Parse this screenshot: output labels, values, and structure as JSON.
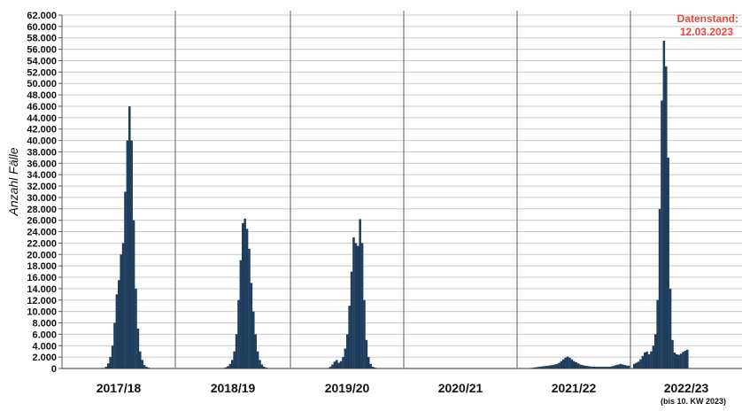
{
  "chart_data": {
    "type": "bar",
    "xlabel": "",
    "ylabel": "Anzahl Fälle",
    "ylim": [
      0,
      62000
    ],
    "y_tick_step": 2000,
    "y_tick_labels": [
      "0",
      "2.000",
      "4.000",
      "6.000",
      "8.000",
      "10.000",
      "12.000",
      "14.000",
      "16.000",
      "18.000",
      "20.000",
      "22.000",
      "24.000",
      "26.000",
      "28.000",
      "30.000",
      "32.000",
      "34.000",
      "36.000",
      "38.000",
      "40.000",
      "42.000",
      "44.000",
      "46.000",
      "48.000",
      "50.000",
      "52.000",
      "54.000",
      "56.000",
      "58.000",
      "60.000",
      "62.000"
    ],
    "grid": true,
    "annotation": {
      "line1": "Datenstand:",
      "line2": "12.03.2023",
      "color": "#e8463c",
      "placement": "top-right"
    },
    "bar_color": "#1f3d5c",
    "seasons": [
      {
        "label": "2017/18",
        "note": "",
        "values": [
          0,
          0,
          0,
          0,
          0,
          0,
          0,
          0,
          0,
          0,
          0,
          0,
          0,
          0,
          0,
          0,
          0,
          0,
          100,
          300,
          900,
          2000,
          4000,
          8000,
          13000,
          15500,
          20000,
          22000,
          31000,
          40000,
          46000,
          40000,
          26000,
          14000,
          7000,
          3000,
          1500,
          600,
          300,
          150,
          80,
          40,
          20,
          10,
          0,
          0,
          0,
          0,
          0,
          0,
          0,
          0,
          0
        ]
      },
      {
        "label": "2018/19",
        "note": "",
        "values": [
          0,
          0,
          0,
          0,
          0,
          0,
          0,
          0,
          0,
          0,
          0,
          0,
          0,
          0,
          0,
          0,
          0,
          0,
          0,
          0,
          50,
          100,
          200,
          400,
          800,
          1500,
          3000,
          6000,
          12000,
          19000,
          25500,
          26300,
          24500,
          21000,
          15000,
          10000,
          6000,
          3000,
          1500,
          700,
          300,
          150,
          60,
          20,
          0,
          0,
          0,
          0,
          0,
          0,
          0,
          0
        ]
      },
      {
        "label": "2019/20",
        "note": "",
        "values": [
          0,
          0,
          0,
          0,
          0,
          0,
          0,
          0,
          0,
          0,
          0,
          0,
          0,
          0,
          0,
          0,
          100,
          300,
          700,
          1200,
          1500,
          1000,
          1300,
          2000,
          3500,
          6000,
          11000,
          17000,
          23000,
          22000,
          21500,
          26200,
          22000,
          12000,
          5000,
          2000,
          800,
          300,
          150,
          80,
          40,
          20,
          10,
          0,
          0,
          0,
          0,
          0,
          0,
          0,
          0,
          0
        ]
      },
      {
        "label": "2020/21",
        "note": "",
        "values": [
          10,
          10,
          10,
          10,
          10,
          10,
          10,
          10,
          10,
          10,
          10,
          10,
          10,
          10,
          10,
          10,
          10,
          10,
          10,
          10,
          10,
          10,
          10,
          10,
          10,
          10,
          10,
          10,
          10,
          10,
          10,
          10,
          10,
          10,
          10,
          10,
          10,
          10,
          10,
          10,
          10,
          10,
          10,
          10,
          10,
          10,
          10,
          10,
          10,
          10,
          10,
          10,
          10
        ]
      },
      {
        "label": "2021/22",
        "note": "",
        "values": [
          50,
          50,
          60,
          60,
          80,
          100,
          150,
          200,
          250,
          300,
          350,
          400,
          450,
          500,
          550,
          600,
          700,
          800,
          1000,
          1300,
          1600,
          1900,
          2100,
          1900,
          1600,
          1300,
          1100,
          900,
          700,
          600,
          500,
          450,
          400,
          350,
          300,
          300,
          300,
          300,
          300,
          300,
          300,
          300,
          300,
          400,
          500,
          600,
          700,
          800,
          700,
          600,
          500,
          500
        ]
      },
      {
        "label": "2022/23",
        "note": "(bis 10. KW 2023)",
        "values": [
          800,
          1000,
          1200,
          1600,
          2200,
          2800,
          3000,
          2500,
          3000,
          4000,
          6000,
          12000,
          28000,
          47000,
          57500,
          53000,
          37000,
          14000,
          5000,
          2800,
          2500,
          2400,
          2600,
          2900,
          3100,
          3300
        ]
      }
    ]
  }
}
